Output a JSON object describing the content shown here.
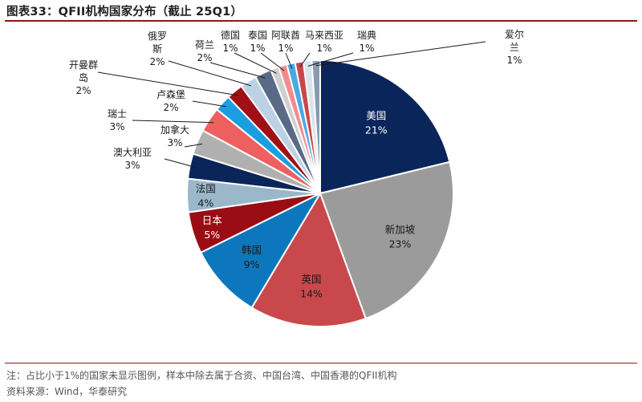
{
  "title": "图表33：QFII机构国家分布（截止 25Q1）",
  "note": "注：占比小于1%的国家未显示图例，样本中除去属于合资、中国台湾、中国香港的QFII机构",
  "source": "资料来源：Wind，华泰研究",
  "colors": {
    "rule": "#8b1a1a"
  },
  "chart_data": {
    "type": "pie",
    "unit": "%",
    "start_angle_deg": 0,
    "direction": "clockwise",
    "slices": [
      {
        "label": "美国",
        "value": 21,
        "display": "21%",
        "color": "#0a2559",
        "label_mode": "inside",
        "text_color": "#ffffff"
      },
      {
        "label": "新加坡",
        "value": 23,
        "display": "23%",
        "color": "#9b9b9b",
        "label_mode": "inside",
        "text_color": "#1a1a1a"
      },
      {
        "label": "英国",
        "value": 14,
        "display": "14%",
        "color": "#c8484c",
        "label_mode": "inside",
        "text_color": "#1a1a1a"
      },
      {
        "label": "韩国",
        "value": 9,
        "display": "9%",
        "color": "#0d77bd",
        "label_mode": "inside",
        "text_color": "#1a1a1a"
      },
      {
        "label": "日本",
        "value": 5,
        "display": "5%",
        "color": "#9b0d14",
        "label_mode": "inside",
        "text_color": "#ffffff"
      },
      {
        "label": "法国",
        "value": 4,
        "display": "4%",
        "color": "#9bb7ca",
        "label_mode": "inside",
        "text_color": "#1a1a1a"
      },
      {
        "label": "澳大利亚",
        "value": 3,
        "display": "3%",
        "color": "#0a2559",
        "label_mode": "outside"
      },
      {
        "label": "加拿大",
        "value": 3,
        "display": "3%",
        "color": "#b0b0b0",
        "label_mode": "outside"
      },
      {
        "label": "瑞士",
        "value": 3,
        "display": "3%",
        "color": "#ee5f5f",
        "label_mode": "outside"
      },
      {
        "label": "卢森堡",
        "value": 2,
        "display": "2%",
        "color": "#1a9ee0",
        "label_mode": "outside"
      },
      {
        "label": "开曼群岛",
        "value": 2,
        "display": "2%",
        "color": "#a01016",
        "label_mode": "outside"
      },
      {
        "label": "俄罗斯",
        "value": 2,
        "display": "2%",
        "color": "#bcd2e4",
        "label_mode": "outside"
      },
      {
        "label": "荷兰",
        "value": 2,
        "display": "2%",
        "color": "#5a6a86",
        "label_mode": "outside"
      },
      {
        "label": "德国",
        "value": 1,
        "display": "1%",
        "color": "#cfcfcf",
        "label_mode": "outside"
      },
      {
        "label": "泰国",
        "value": 1,
        "display": "1%",
        "color": "#f28c8c",
        "label_mode": "outside"
      },
      {
        "label": "阿联酋",
        "value": 1,
        "display": "1%",
        "color": "#4aa8e4",
        "label_mode": "outside"
      },
      {
        "label": "马来西亚",
        "value": 1,
        "display": "1%",
        "color": "#c8484c",
        "label_mode": "outside"
      },
      {
        "label": "瑞典",
        "value": 1,
        "display": "1%",
        "color": "#d8e4ee",
        "label_mode": "outside"
      },
      {
        "label": "爱尔兰",
        "value": 1,
        "display": "1%",
        "color": "#8a9ab2",
        "label_mode": "outside"
      }
    ]
  }
}
